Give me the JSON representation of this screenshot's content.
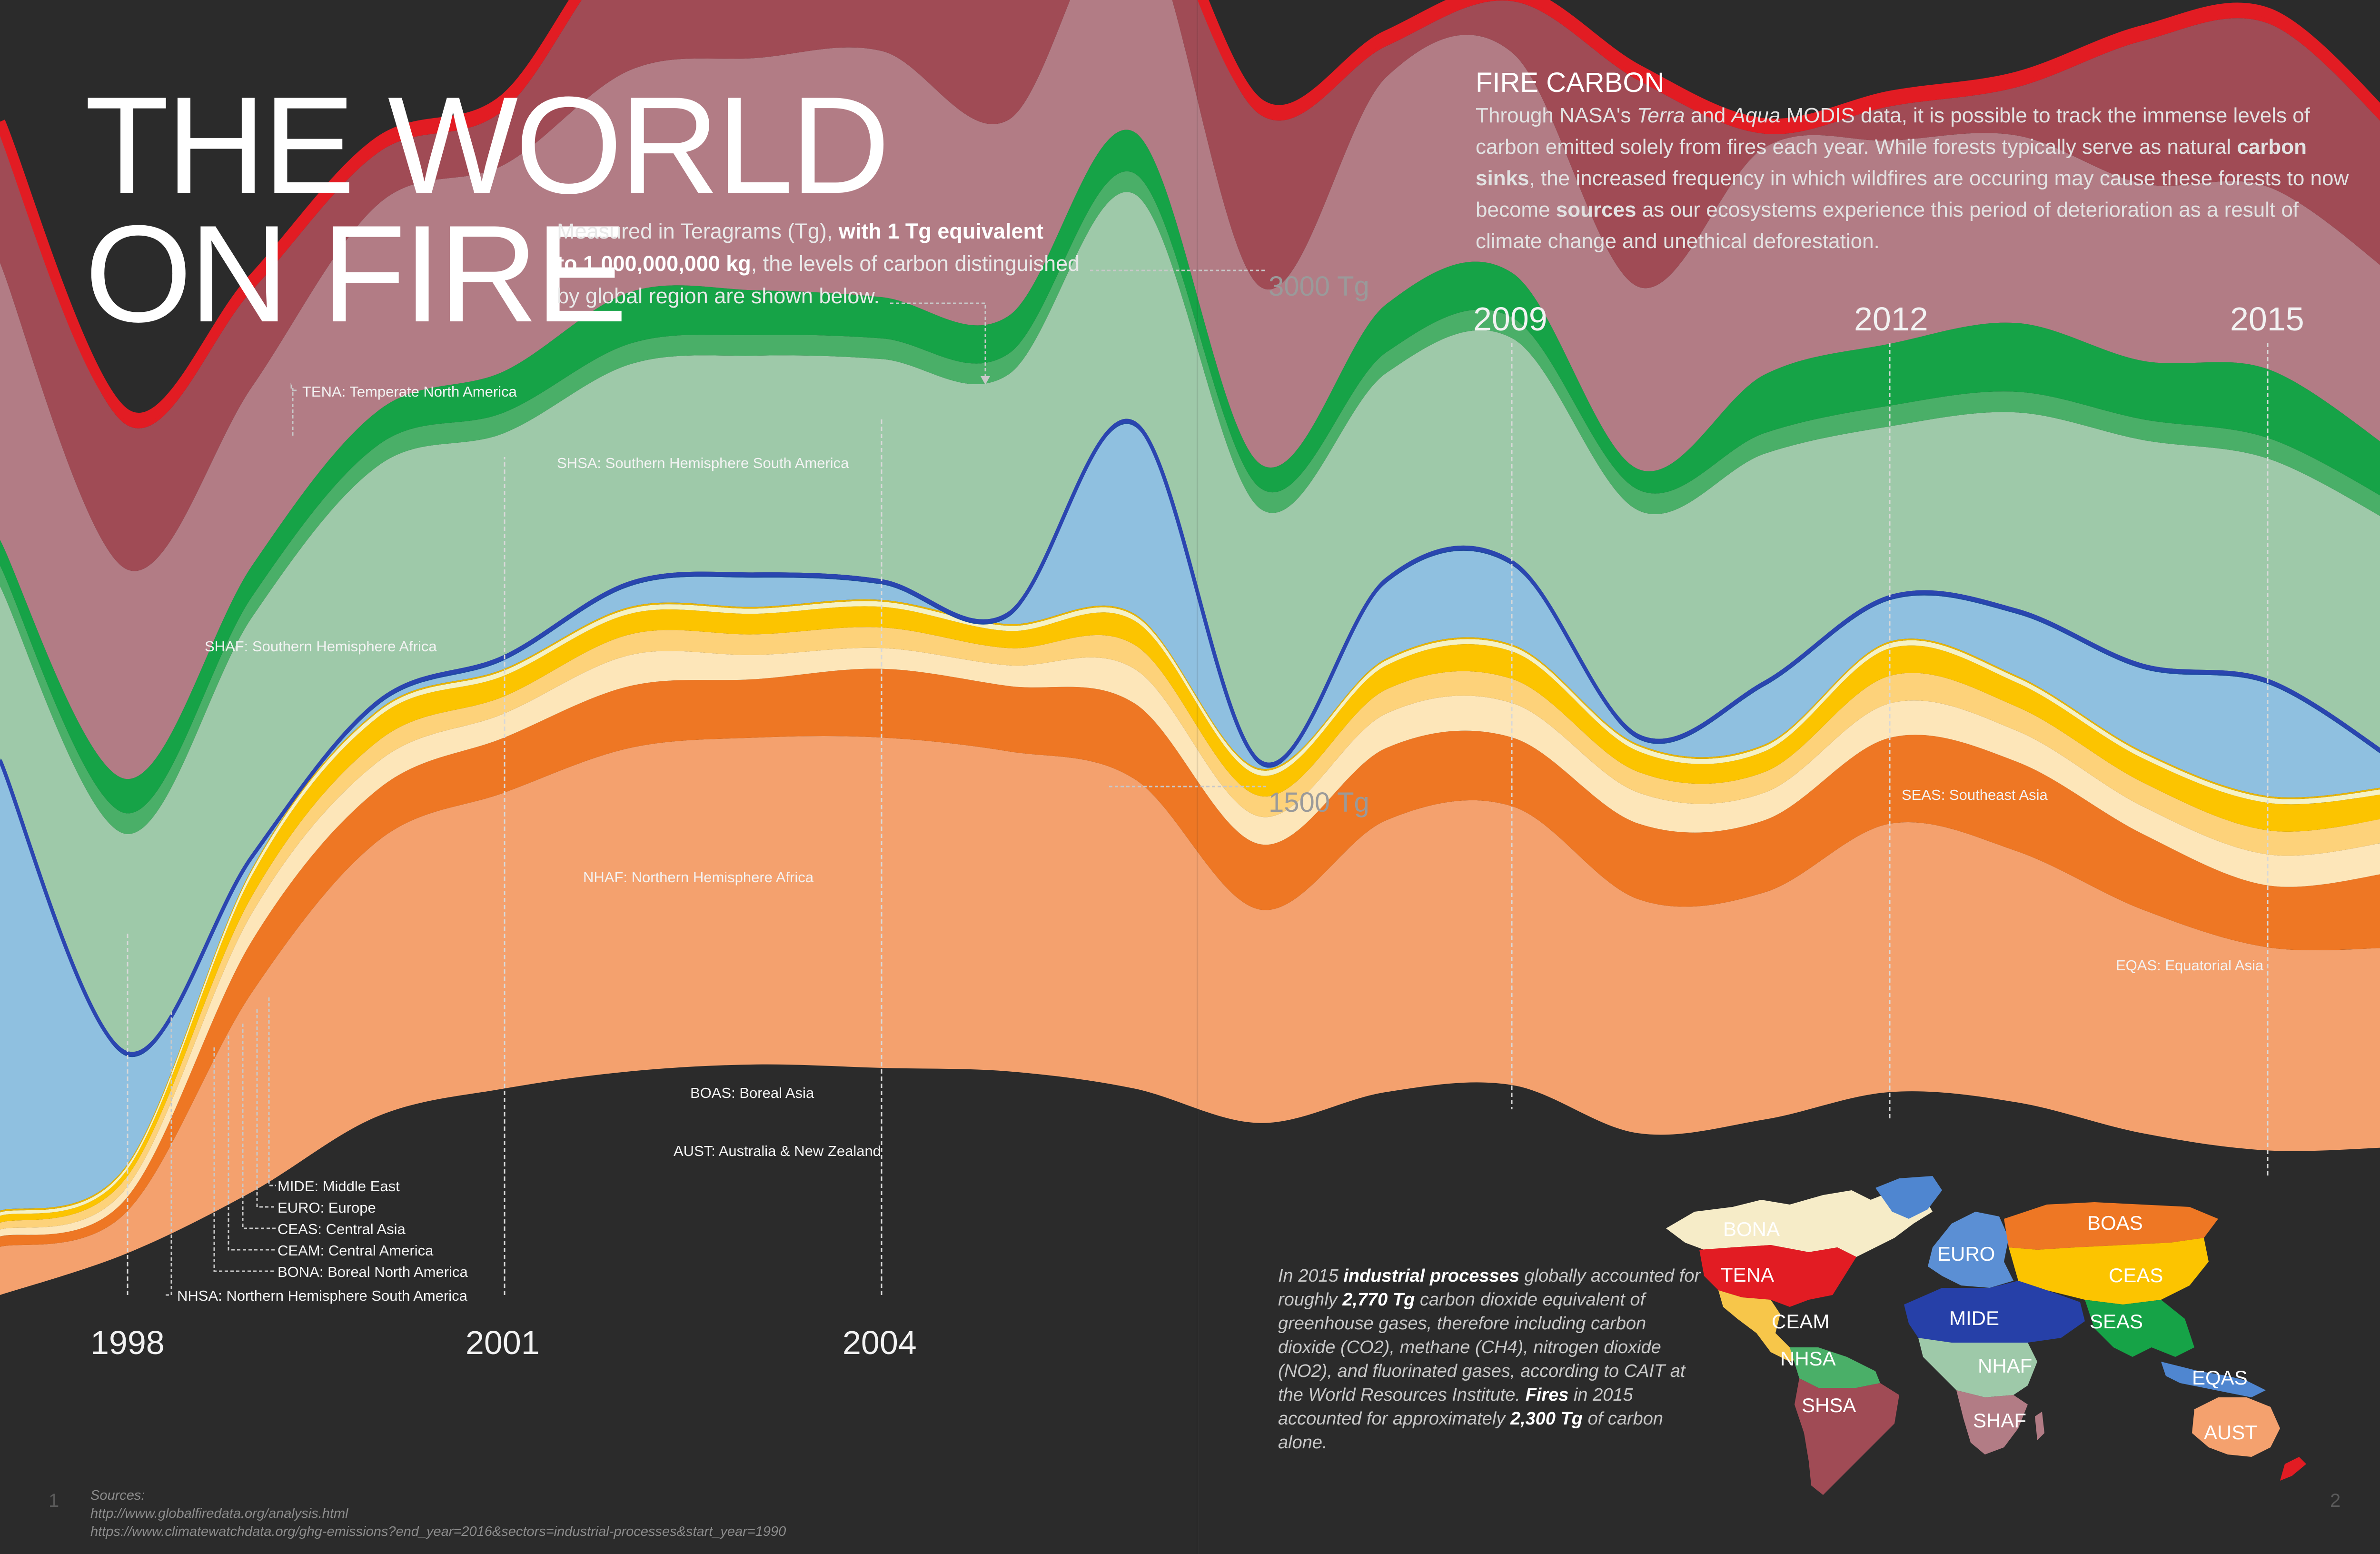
{
  "title_line1": "THE WORLD",
  "title_line2": "ON FIRE",
  "intro": {
    "l1_a": "Measured in Teragrams (Tg), ",
    "l1_b": "with 1 Tg equivalent",
    "l2_a": "to 1,000,000,000 kg",
    "l2_b": ", the levels of carbon distinguished",
    "l3": "by global region are shown below."
  },
  "section": {
    "heading": "FIRE CARBON",
    "p1": "Through NASA's ",
    "terra": "Terra",
    "p2": " and ",
    "aqua": "Aqua",
    "p3": " MODIS data, it is possible to track the immense levels of carbon emitted solely from fires each year. While forests typically serve as natural ",
    "sinks": "carbon sinks",
    "p4": ", the increased frequency in which wildfires are occuring may cause these forests to now become ",
    "sources": "sources",
    "p5": " as our ecosystems experience this period of deterioration as a result of climate change and unethical deforestation."
  },
  "chart_data": {
    "type": "area",
    "stacked": true,
    "ylabel": "Tg",
    "scale_labels": [
      "3000 Tg",
      "1500 Tg"
    ],
    "scale_values": [
      3000,
      1500
    ],
    "year_labels": [
      "1998",
      "2001",
      "2004",
      "2009",
      "2012",
      "2015"
    ],
    "x": [
      1997,
      1998,
      1999,
      2000,
      2001,
      2002,
      2003,
      2004,
      2005,
      2006,
      2007,
      2008,
      2009,
      2010,
      2011,
      2012,
      2013,
      2014,
      2015,
      2016
    ],
    "series": [
      {
        "code": "AUST",
        "name": "AUST: Australia & New Zealand",
        "color": "#f4a16e",
        "values": [
          140,
          120,
          580,
          800,
          860,
          940,
          950,
          960,
          930,
          900,
          620,
          790,
          810,
          680,
          660,
          780,
          730,
          650,
          590,
          580
        ]
      },
      {
        "code": "BOAS",
        "name": "BOAS: Boreal Asia",
        "color": "#ee7724",
        "values": [
          30,
          40,
          150,
          150,
          160,
          180,
          170,
          200,
          190,
          220,
          190,
          210,
          200,
          220,
          210,
          250,
          260,
          220,
          180,
          220
        ]
      },
      {
        "code": "BONA",
        "name": "BONA: Boreal North America",
        "color": "#fde6b9",
        "values": [
          20,
          30,
          80,
          80,
          70,
          90,
          70,
          60,
          60,
          100,
          80,
          100,
          100,
          90,
          80,
          100,
          90,
          80,
          90,
          90
        ]
      },
      {
        "code": "CEAM",
        "name": "CEAM: Central America",
        "color": "#fdd27a",
        "values": [
          20,
          30,
          50,
          60,
          50,
          60,
          60,
          60,
          50,
          70,
          60,
          70,
          70,
          60,
          60,
          80,
          70,
          70,
          70,
          70
        ]
      },
      {
        "code": "CEAS",
        "name": "CEAS: Central Asia",
        "color": "#fcc400",
        "values": [
          20,
          20,
          60,
          70,
          60,
          60,
          60,
          60,
          50,
          70,
          60,
          70,
          80,
          60,
          60,
          80,
          70,
          70,
          80,
          70
        ]
      },
      {
        "code": "EURO",
        "name": "EURO: Europe",
        "color": "#f6f2c4",
        "values": [
          10,
          10,
          15,
          15,
          15,
          15,
          15,
          15,
          15,
          15,
          15,
          15,
          15,
          15,
          15,
          15,
          15,
          15,
          15,
          15
        ]
      },
      {
        "code": "MIDE",
        "name": "MIDE: Middle East",
        "color": "#e9b500",
        "values": [
          5,
          5,
          5,
          5,
          5,
          5,
          5,
          5,
          5,
          5,
          5,
          5,
          5,
          5,
          5,
          5,
          5,
          5,
          5,
          5
        ]
      },
      {
        "code": "NHSA",
        "name": "NHSA: Northern Hemisphere South America",
        "color": "#8fc0e0",
        "values": [
          1300,
          320,
          25,
          15,
          25,
          60,
          85,
          45,
          20,
          545,
          10,
          220,
          230,
          15,
          170,
          120,
          180,
          240,
          325,
          65
        ]
      },
      {
        "code": "EQAS",
        "name": "EQAS: Equatorial Asia",
        "color": "#1f4aa6",
        "values": [
          15,
          15,
          15,
          15,
          15,
          15,
          15,
          15,
          15,
          15,
          15,
          15,
          15,
          15,
          15,
          15,
          15,
          15,
          15,
          15
        ]
      },
      {
        "code": "NHAF",
        "name": "NHAF: Northern Hemisphere Africa",
        "color": "#9ec9a9",
        "values": [
          500,
          630,
          690,
          680,
          645,
          630,
          630,
          640,
          690,
          660,
          730,
          595,
          645,
          650,
          660,
          490,
          570,
          650,
          640,
          680
        ]
      },
      {
        "code": "SEAS",
        "name": "SEAS: Southeast Asia",
        "color": "#4aaf68",
        "values": [
          60,
          60,
          60,
          60,
          60,
          60,
          60,
          60,
          60,
          60,
          60,
          60,
          60,
          60,
          60,
          60,
          60,
          60,
          60,
          60
        ]
      },
      {
        "code": "SEAS2",
        "name": "",
        "color": "#16a347",
        "values": [
          75,
          100,
          90,
          100,
          120,
          150,
          130,
          120,
          110,
          120,
          70,
          140,
          130,
          60,
          170,
          180,
          200,
          170,
          200,
          150
        ]
      },
      {
        "code": "SHAF",
        "name": "SHAF: Southern Hemisphere Africa",
        "color": "#b27c85",
        "values": [
          805,
          610,
          520,
          600,
          600,
          645,
          675,
          715,
          570,
          640,
          515,
          660,
          640,
          530,
          660,
          590,
          545,
          515,
          530,
          510
        ]
      },
      {
        "code": "SHSA",
        "name": "SHSA: Southern Hemisphere South America",
        "color": "#a04b55",
        "values": [
          380,
          420,
          280,
          150,
          160,
          360,
          210,
          185,
          370,
          85,
          500,
          90,
          150,
          600,
          40,
          100,
          140,
          415,
          475,
          410
        ]
      },
      {
        "code": "TENA",
        "name": "TENA: Temperate North America",
        "color": "#e21c23",
        "values": [
          30,
          30,
          30,
          30,
          30,
          30,
          30,
          30,
          30,
          30,
          30,
          30,
          30,
          30,
          30,
          30,
          30,
          30,
          30,
          30
        ]
      }
    ]
  },
  "note": {
    "a": "In 2015 ",
    "b": "industrial processes",
    "c": " globally accounted for roughly ",
    "d": "2,770 Tg",
    "e": " carbon dioxide equivalent of greenhouse gases, therefore including carbon dioxide (CO2), methane (CH4), nitrogen dioxide (NO2), and fluorinated gases, according to CAIT at the World Resources Institute. ",
    "f": "Fires",
    "g": " in 2015 accounted for approximately ",
    "h": "2,300 Tg",
    "i": " of carbon alone."
  },
  "sources": {
    "label": "Sources:",
    "url1": "http://www.globalfiredata.org/analysis.html",
    "url2": "https://www.climatewatchdata.org/ghg-emissions?end_year=2016&sectors=industrial-processes&start_year=1990"
  },
  "page_numbers": [
    "1",
    "2"
  ],
  "map": {
    "regions": [
      {
        "code": "BONA",
        "color": "#f6ecc8"
      },
      {
        "code": "TENA",
        "color": "#e21c23"
      },
      {
        "code": "CEAM",
        "color": "#f7c64a"
      },
      {
        "code": "NHSA",
        "color": "#4aaf68"
      },
      {
        "code": "SHSA",
        "color": "#a04b55"
      },
      {
        "code": "EURO",
        "color": "#5b8fd4"
      },
      {
        "code": "BOAS",
        "color": "#ee7724"
      },
      {
        "code": "CEAS",
        "color": "#fcc400"
      },
      {
        "code": "MIDE",
        "color": "#2640a8"
      },
      {
        "code": "SEAS",
        "color": "#16a347"
      },
      {
        "code": "NHAF",
        "color": "#9ec9a9"
      },
      {
        "code": "SHAF",
        "color": "#b27c85"
      },
      {
        "code": "EQAS",
        "color": "#4f86d0"
      },
      {
        "code": "AUST",
        "color": "#f4a16e"
      }
    ]
  }
}
